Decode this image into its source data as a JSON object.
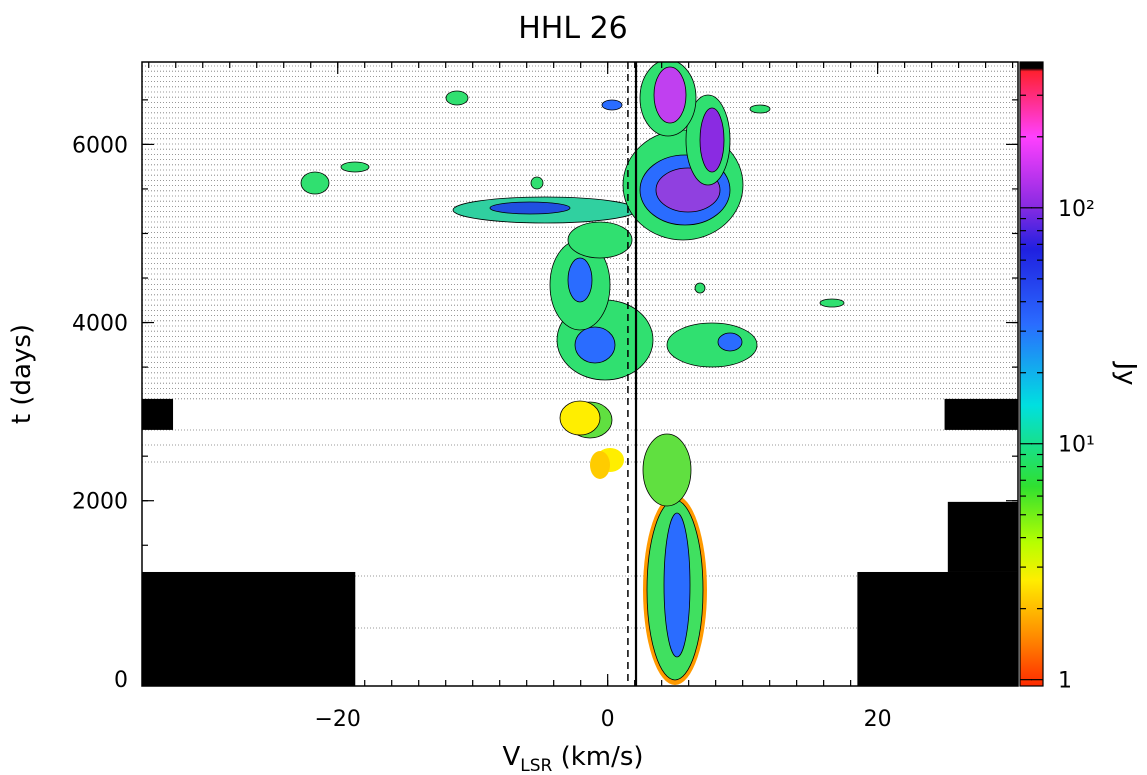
{
  "chart_data": {
    "type": "heatmap",
    "title": "HHL 26",
    "xlabel": {
      "main": "V",
      "sub": "LSR",
      "rest": " (km/s)"
    },
    "ylabel": "t (days)",
    "xlim": [
      -34.5,
      30.4
    ],
    "ylim": [
      -80,
      6925
    ],
    "xticks": [
      {
        "value": -20,
        "label": "−20"
      },
      0,
      20
    ],
    "yticks": [
      0,
      2000,
      4000,
      6000
    ],
    "colorbar": {
      "label": "Jy",
      "scale": "log",
      "clim": [
        0.94,
        415
      ],
      "ticks": [
        1,
        {
          "value": 10,
          "label": "10¹"
        },
        {
          "value": 100,
          "label": "10²"
        }
      ]
    },
    "vlines": [
      {
        "x": 2.1,
        "style": "solid"
      },
      {
        "x": 1.5,
        "style": "dashed"
      }
    ],
    "masked_regions": [
      {
        "x": [
          -34.5,
          -18.7
        ],
        "y": [
          -80,
          1200
        ]
      },
      {
        "x": [
          -34.5,
          -32.2
        ],
        "y": [
          2795,
          3143
        ]
      },
      {
        "x": [
          24.96,
          30.4
        ],
        "y": [
          2795,
          3143
        ]
      },
      {
        "x": [
          18.5,
          30.4
        ],
        "y": [
          -80,
          1200
        ]
      },
      {
        "x": [
          25.2,
          30.4
        ],
        "y": [
          1200,
          1987
        ]
      }
    ]
  }
}
